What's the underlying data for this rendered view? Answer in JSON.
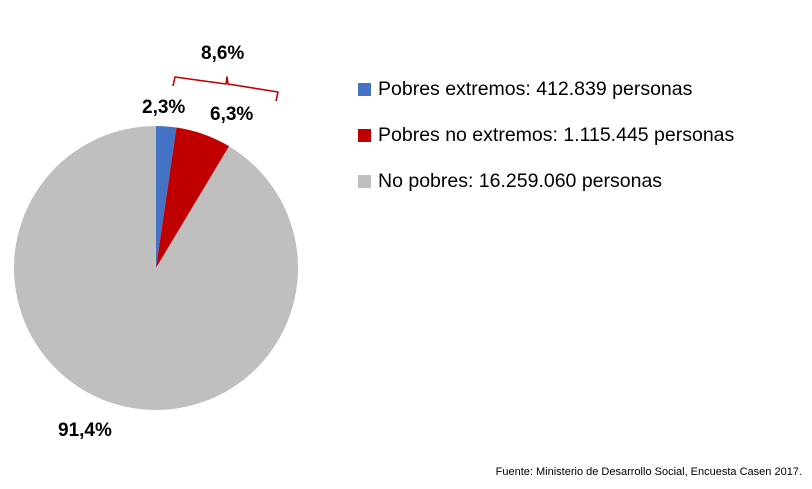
{
  "chart_data": {
    "type": "pie",
    "slices": [
      {
        "name": "Pobres extremos",
        "value": 2.3,
        "label": "2,3%",
        "legend": "Pobres extremos:   412.839 personas",
        "color": "#4472c4"
      },
      {
        "name": "Pobres no extremos",
        "value": 6.3,
        "label": "6,3%",
        "legend": "Pobres no extremos:  1.115.445 personas",
        "color": "#c00000"
      },
      {
        "name": "No pobres",
        "value": 91.4,
        "label": "91,4%",
        "legend": "No pobres: 16.259.060  personas",
        "color": "#bfbfbf"
      }
    ],
    "bracket_label": "8,6%",
    "bracket_color": "#c00000",
    "legend_position": "right"
  },
  "source_note": "Fuente: Ministerio de Desarrollo Social, Encuesta Casen 2017."
}
